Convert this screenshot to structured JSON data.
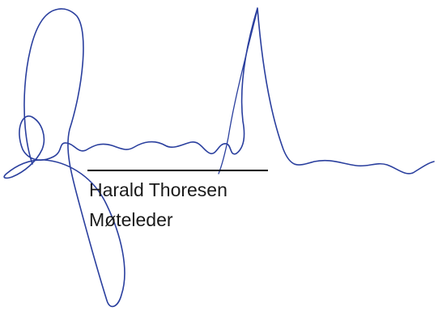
{
  "signature_block": {
    "signature_image": {
      "kind": "handwritten-signature",
      "ink_color": "#2a3f9e"
    },
    "name": "Harald Thoresen",
    "role": "Møteleder",
    "text_color": "#1a1a1a",
    "rule_color": "#000000"
  }
}
